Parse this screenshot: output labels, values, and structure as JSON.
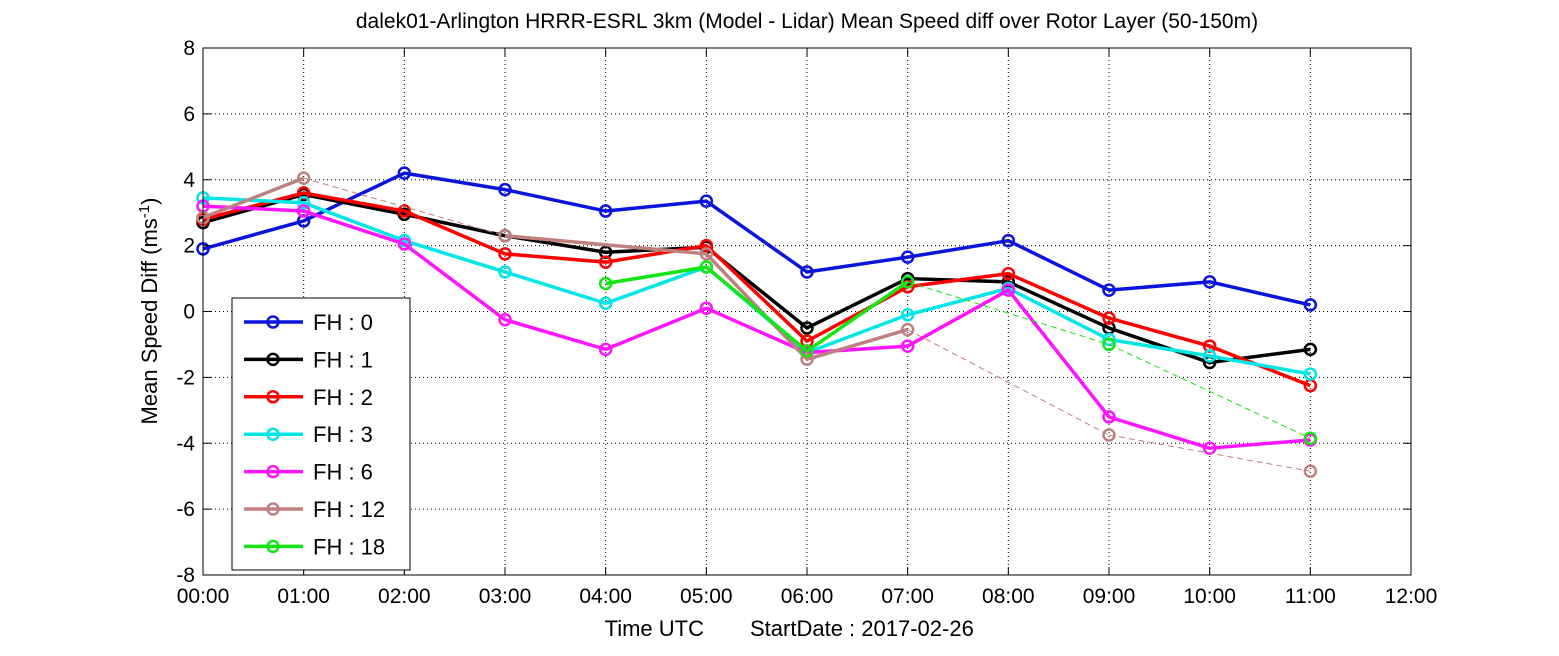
{
  "chart_data": {
    "type": "line",
    "title": "dalek01-Arlington HRRR-ESRL 3km (Model - Lidar) Mean Speed diff over Rotor Layer (50-150m)",
    "xlabel": "Time UTC",
    "xlabel_extra": "StartDate : 2017-02-26",
    "ylabel_main": "Mean Speed Diff (ms",
    "ylabel_sup": "-1",
    "ylabel_close": ")",
    "x_ticks": [
      "00:00",
      "01:00",
      "02:00",
      "03:00",
      "04:00",
      "05:00",
      "06:00",
      "07:00",
      "08:00",
      "09:00",
      "10:00",
      "11:00",
      "12:00"
    ],
    "y_ticks": [
      "8",
      "6",
      "4",
      "2",
      "0",
      "-2",
      "-4",
      "-6",
      "-8"
    ],
    "xlim": [
      0,
      12
    ],
    "ylim": [
      -8,
      8
    ],
    "grid": true,
    "legend_position": "lower-left",
    "series": [
      {
        "name": "FH : 0",
        "color": "#0a14dc",
        "style": "solid",
        "x": [
          0,
          1,
          2,
          3,
          4,
          5,
          6,
          7,
          8,
          9,
          10,
          11
        ],
        "values": [
          1.9,
          2.75,
          4.2,
          3.7,
          3.05,
          3.35,
          1.2,
          1.65,
          2.15,
          0.65,
          0.9,
          0.2
        ]
      },
      {
        "name": "FH : 1",
        "color": "#000000",
        "style": "solid",
        "x": [
          0,
          1,
          2,
          3,
          4,
          5,
          6,
          7,
          8,
          9,
          10,
          11
        ],
        "values": [
          2.7,
          3.55,
          2.95,
          2.3,
          1.8,
          1.95,
          -0.5,
          1.0,
          0.9,
          -0.5,
          -1.55,
          -1.15
        ]
      },
      {
        "name": "FH : 2",
        "color": "#ff0000",
        "style": "solid",
        "x": [
          0,
          1,
          2,
          3,
          4,
          5,
          6,
          7,
          8,
          9,
          10,
          11
        ],
        "values": [
          2.8,
          3.6,
          3.05,
          1.75,
          1.5,
          2.0,
          -0.9,
          0.75,
          1.15,
          -0.2,
          -1.05,
          -2.25
        ]
      },
      {
        "name": "FH : 3",
        "color": "#00e6e6",
        "style": "solid",
        "x": [
          0,
          1,
          2,
          3,
          4,
          5,
          6,
          7,
          8,
          9,
          10,
          11
        ],
        "values": [
          3.45,
          3.3,
          2.15,
          1.2,
          0.25,
          1.35,
          -1.25,
          -0.1,
          0.7,
          -0.85,
          -1.35,
          -1.9
        ]
      },
      {
        "name": "FH : 6",
        "color": "#ff14ff",
        "style": "solid",
        "x": [
          0,
          1,
          2,
          3,
          4,
          5,
          6,
          7,
          8,
          9,
          10,
          11
        ],
        "values": [
          3.2,
          3.05,
          2.05,
          -0.25,
          -1.15,
          0.1,
          -1.25,
          -1.05,
          0.65,
          -3.2,
          -4.15,
          -3.9
        ]
      },
      {
        "name": "FH : 12",
        "color": "#bf8080",
        "style": "segments",
        "x": [
          0,
          1,
          3,
          5,
          6,
          7,
          9,
          11
        ],
        "values": [
          2.85,
          4.05,
          2.3,
          1.75,
          -1.45,
          -0.55,
          -3.75,
          -4.85
        ],
        "segments": [
          [
            0,
            1
          ],
          [
            2,
            3,
            4,
            5
          ],
          [
            6
          ],
          [
            7
          ]
        ],
        "dashed_links": [
          [
            1,
            2
          ],
          [
            5,
            6
          ],
          [
            6,
            7
          ]
        ]
      },
      {
        "name": "FH : 18",
        "color": "#14e614",
        "style": "segments",
        "x": [
          4,
          5,
          6,
          7,
          9,
          11
        ],
        "values": [
          0.85,
          1.35,
          -1.2,
          0.9,
          -1.0,
          -3.85
        ],
        "segments": [
          [
            0,
            1,
            2,
            3
          ],
          [
            4
          ],
          [
            5
          ]
        ],
        "dashed_links": [
          [
            3,
            4
          ],
          [
            4,
            5
          ]
        ]
      }
    ]
  }
}
